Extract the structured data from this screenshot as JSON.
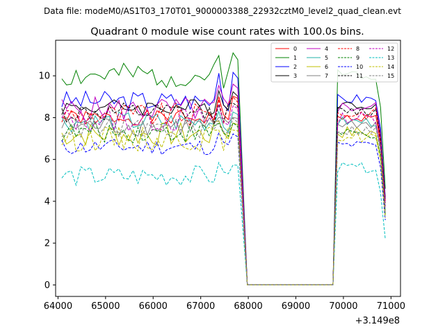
{
  "chart_data": {
    "type": "line",
    "suptitle": "Data file: modeM0/AS1T03_170T01_9000003388_22932cztM0_level2_quad_clean.evt",
    "title": "Quadrant 0 module wise count rates with 100.0s bins.",
    "xlabel": "",
    "ylabel": "",
    "x_offset_label": "+3.149e8",
    "xlim": [
      63950,
      71200
    ],
    "ylim": [
      -0.55,
      11.7
    ],
    "xticks": [
      64000,
      65000,
      66000,
      67000,
      68000,
      69000,
      70000,
      71000
    ],
    "xtick_labels": [
      "64000",
      "65000",
      "66000",
      "67000",
      "68000",
      "69000",
      "70000",
      "71000"
    ],
    "yticks": [
      0,
      2,
      4,
      6,
      8,
      10
    ],
    "ytick_labels": [
      "0",
      "2",
      "4",
      "6",
      "8",
      "10"
    ],
    "legend_position": "top-right",
    "x_segments": [
      {
        "start": 64080,
        "end": 67780,
        "step": 100
      },
      {
        "start": 67980,
        "end": 69780,
        "step": 900
      },
      {
        "start": 69880,
        "end": 70880,
        "step": 100
      }
    ],
    "series": [
      {
        "name": "0",
        "color": "#ff0000",
        "dash": "solid",
        "level": 8.0,
        "amp": 0.18,
        "peak": 9.2,
        "tail": 8.0,
        "end": 4.0,
        "seed": 1
      },
      {
        "name": "1",
        "color": "#008000",
        "dash": "solid",
        "level": 10.0,
        "amp": 0.3,
        "peak": 11.1,
        "tail": 10.1,
        "end": 4.6,
        "seed": 2
      },
      {
        "name": "2",
        "color": "#0000ff",
        "dash": "solid",
        "level": 8.8,
        "amp": 0.25,
        "peak": 10.2,
        "tail": 8.9,
        "end": 4.2,
        "seed": 3
      },
      {
        "name": "3",
        "color": "#000000",
        "dash": "solid",
        "level": 8.5,
        "amp": 0.2,
        "peak": 9.3,
        "tail": 8.6,
        "end": 4.1,
        "seed": 4
      },
      {
        "name": "4",
        "color": "#bf00bf",
        "dash": "solid",
        "level": 8.4,
        "amp": 0.3,
        "peak": 9.7,
        "tail": 8.5,
        "end": 4.0,
        "seed": 5
      },
      {
        "name": "5",
        "color": "#20b2aa",
        "dash": "solid",
        "level": 7.8,
        "amp": 0.25,
        "peak": 8.4,
        "tail": 7.8,
        "end": 3.6,
        "seed": 6
      },
      {
        "name": "6",
        "color": "#bfbf00",
        "dash": "solid",
        "level": 7.2,
        "amp": 0.3,
        "peak": 7.9,
        "tail": 7.3,
        "end": 3.4,
        "seed": 7
      },
      {
        "name": "7",
        "color": "#808080",
        "dash": "solid",
        "level": 7.6,
        "amp": 0.25,
        "peak": 8.2,
        "tail": 7.7,
        "end": 3.5,
        "seed": 8
      },
      {
        "name": "8",
        "color": "#ff0000",
        "dash": "dashed",
        "level": 8.1,
        "amp": 0.3,
        "peak": 9.0,
        "tail": 8.2,
        "end": 3.9,
        "seed": 9
      },
      {
        "name": "9",
        "color": "#008000",
        "dash": "dashed",
        "level": 7.3,
        "amp": 0.25,
        "peak": 7.8,
        "tail": 7.2,
        "end": 3.3,
        "seed": 10
      },
      {
        "name": "10",
        "color": "#0000ff",
        "dash": "dashed",
        "level": 6.6,
        "amp": 0.2,
        "peak": 7.3,
        "tail": 6.7,
        "end": 3.1,
        "seed": 11
      },
      {
        "name": "11",
        "color": "#000000",
        "dash": "dashed",
        "level": 8.2,
        "amp": 0.25,
        "peak": 8.8,
        "tail": 8.3,
        "end": 3.8,
        "seed": 12
      },
      {
        "name": "12",
        "color": "#bf00bf",
        "dash": "dashed",
        "level": 7.9,
        "amp": 0.3,
        "peak": 8.7,
        "tail": 8.0,
        "end": 3.7,
        "seed": 13
      },
      {
        "name": "13",
        "color": "#00bfbf",
        "dash": "dashed",
        "level": 5.2,
        "amp": 0.25,
        "peak": 5.9,
        "tail": 5.6,
        "end": 2.2,
        "seed": 14
      },
      {
        "name": "14",
        "color": "#bfbf00",
        "dash": "dashed",
        "level": 7.0,
        "amp": 0.3,
        "peak": 7.6,
        "tail": 7.1,
        "end": 3.2,
        "seed": 15
      },
      {
        "name": "15",
        "color": "#808080",
        "dash": "dashed",
        "level": 7.5,
        "amp": 0.25,
        "peak": 8.0,
        "tail": 7.4,
        "end": 3.5,
        "seed": 16
      }
    ]
  }
}
